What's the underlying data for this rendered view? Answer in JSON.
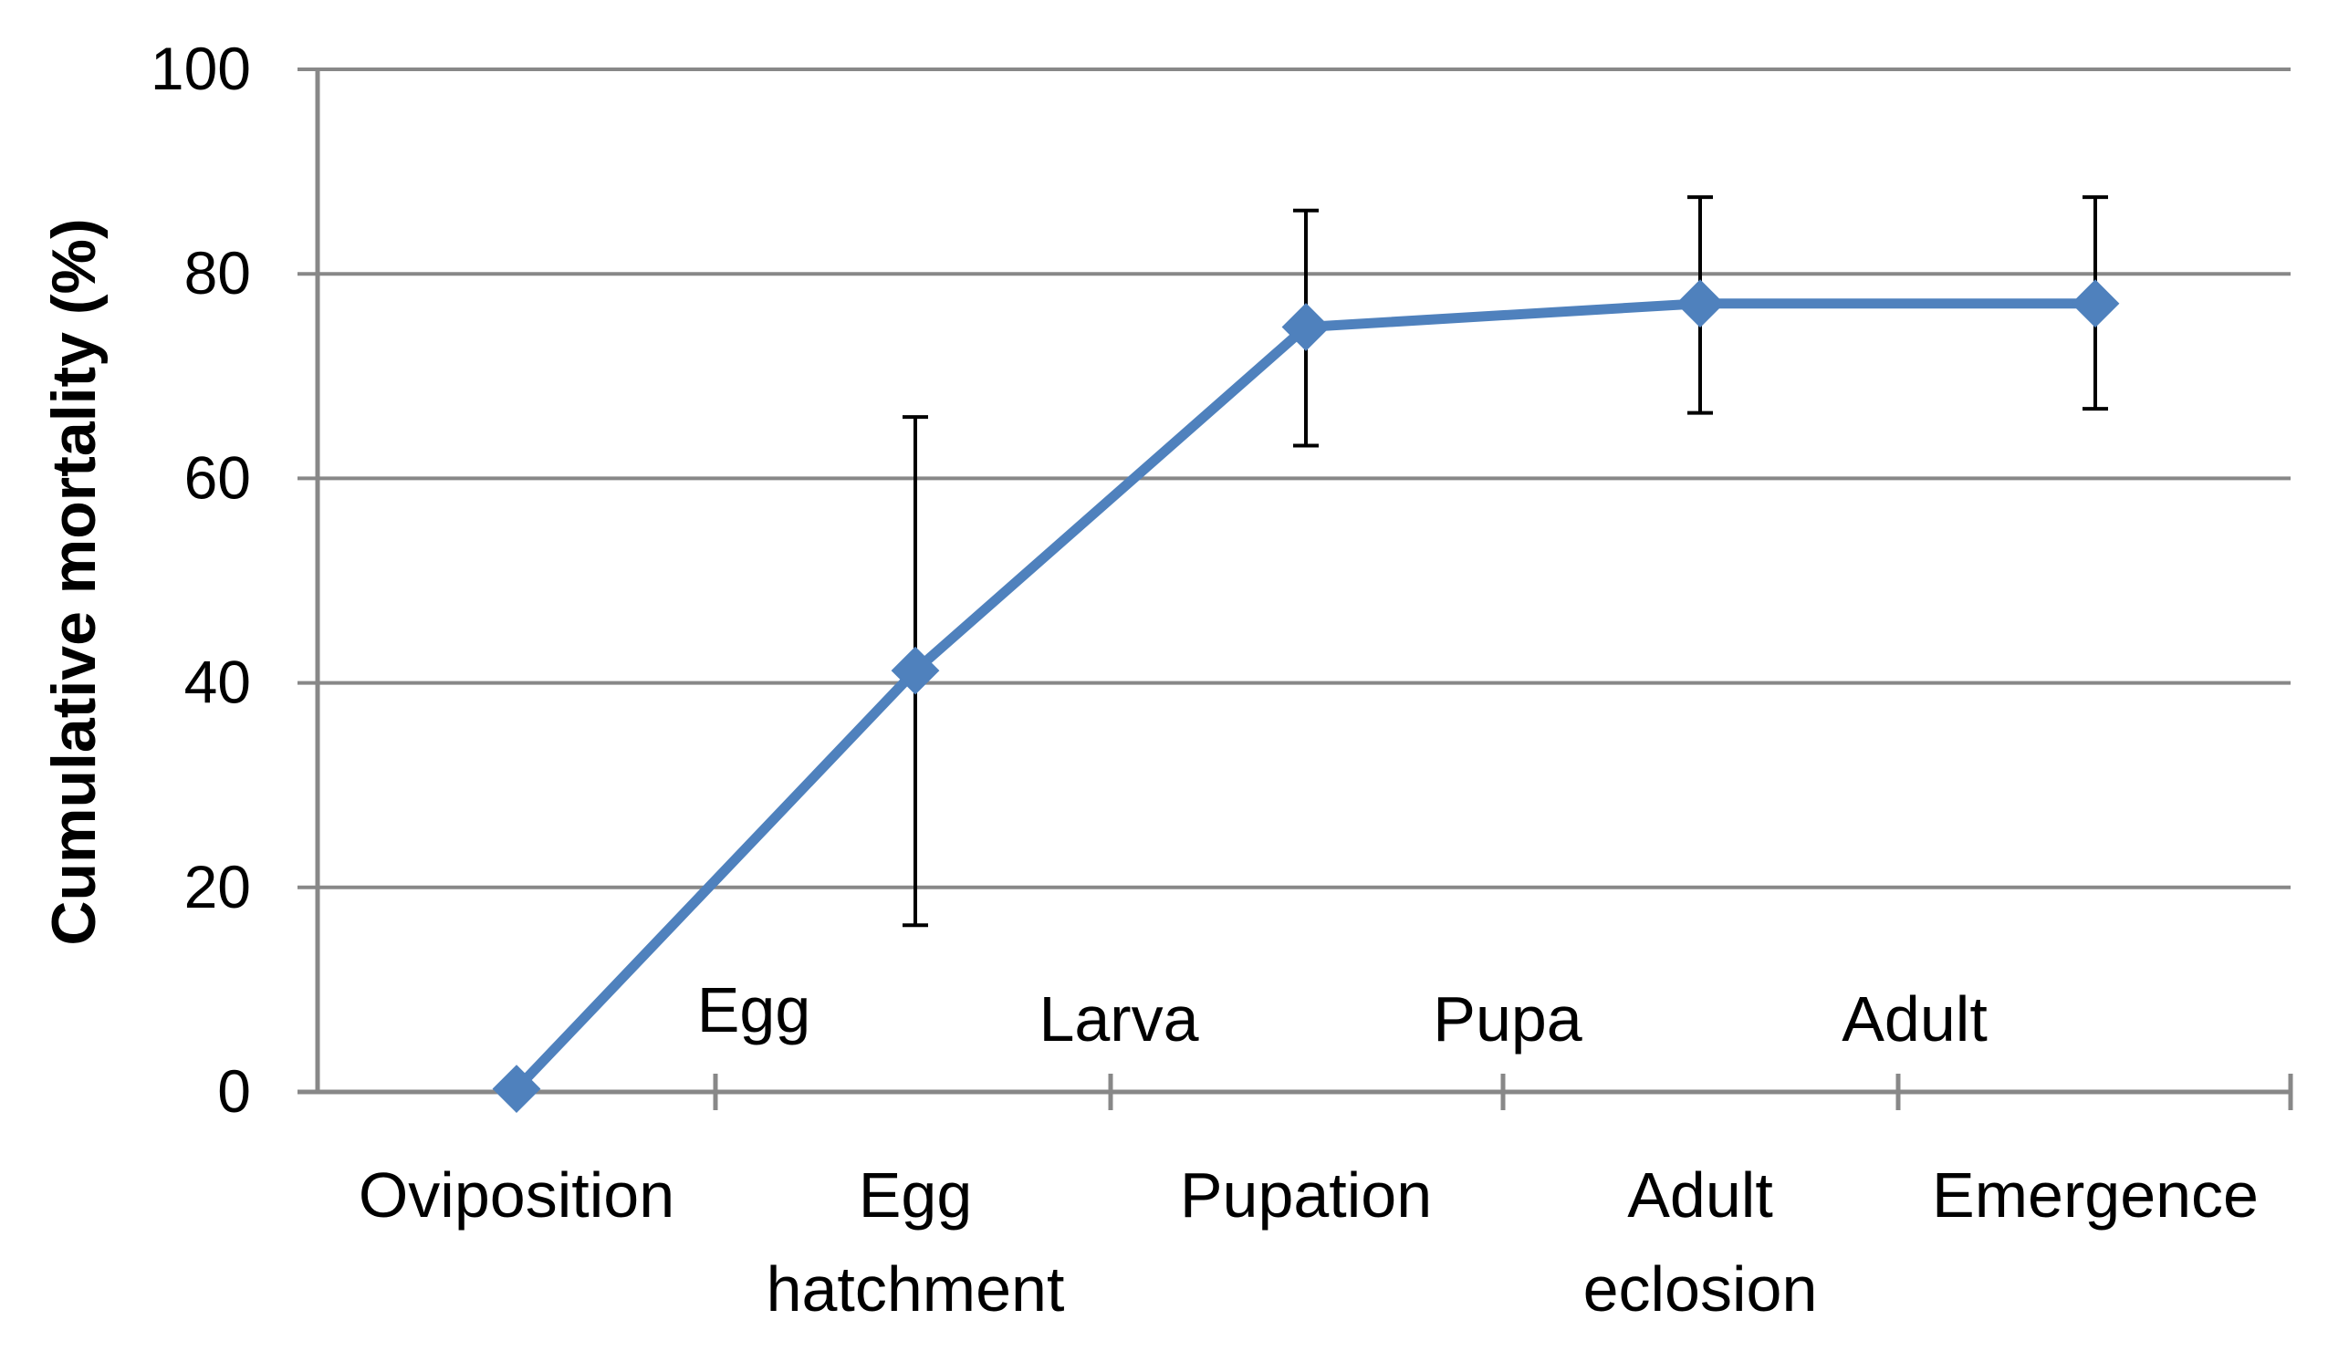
{
  "chart_data": {
    "type": "line",
    "title": "",
    "xlabel": "",
    "ylabel": "Cumulative mortality  (%)",
    "ylim": [
      0,
      100
    ],
    "yticks": [
      0,
      20,
      40,
      60,
      80,
      100
    ],
    "grid": true,
    "legend": "none",
    "categories": [
      [
        "Oviposition"
      ],
      [
        "Egg",
        "hatchment"
      ],
      [
        "Pupation"
      ],
      [
        "Adult",
        "eclosion"
      ],
      [
        "Emergence"
      ]
    ],
    "stage_labels": [
      "Egg",
      "Larva",
      "Pupa",
      "Adult"
    ],
    "series": [
      {
        "name": "Cumulative mortality",
        "color": "#4F81BD",
        "marker": "diamond",
        "values": [
          0.3,
          41.2,
          74.8,
          77.1,
          77.1
        ],
        "error_low": [
          0.3,
          16.3,
          63.2,
          66.4,
          66.8
        ],
        "error_high": [
          0.3,
          66.0,
          86.2,
          87.5,
          87.5
        ]
      }
    ],
    "colors": {
      "axis": "#888888",
      "grid": "#888888",
      "error_bar": "#000000"
    }
  }
}
